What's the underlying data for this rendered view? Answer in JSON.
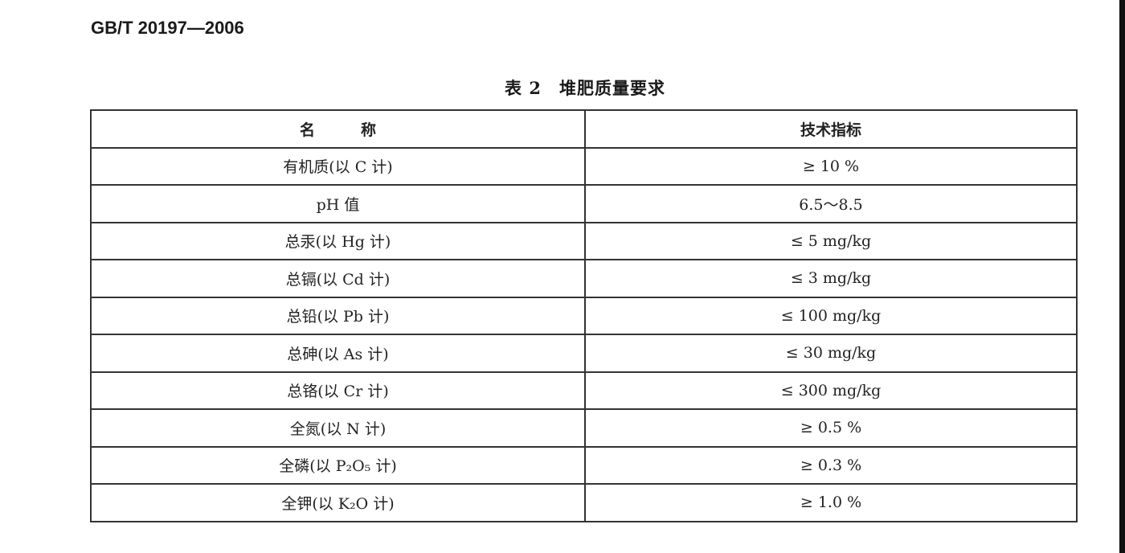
{
  "header": {
    "standard": "GB/T 20197—2006"
  },
  "table": {
    "title": "表 2　堆肥质量要求",
    "columns": [
      "名　　　称",
      "技术指标"
    ],
    "rows": [
      [
        "有机质(以 C 计)",
        "≥ 10 %"
      ],
      [
        "pH 值",
        "6.5～8.5"
      ],
      [
        "总汞(以 Hg 计)",
        "≤ 5 mg/kg"
      ],
      [
        "总镉(以 Cd 计)",
        "≤ 3 mg/kg"
      ],
      [
        "总铅(以 Pb 计)",
        "≤ 100 mg/kg"
      ],
      [
        "总砷(以 As 计)",
        "≤ 30 mg/kg"
      ],
      [
        "总铬(以 Cr 计)",
        "≤ 300 mg/kg"
      ],
      [
        "全氮(以 N 计)",
        "≥ 0.5 %"
      ],
      [
        "全磷(以 P₂O₅ 计)",
        "≥ 0.3 %"
      ],
      [
        "全钾(以 K₂O 计)",
        "≥ 1.0 %"
      ]
    ]
  }
}
